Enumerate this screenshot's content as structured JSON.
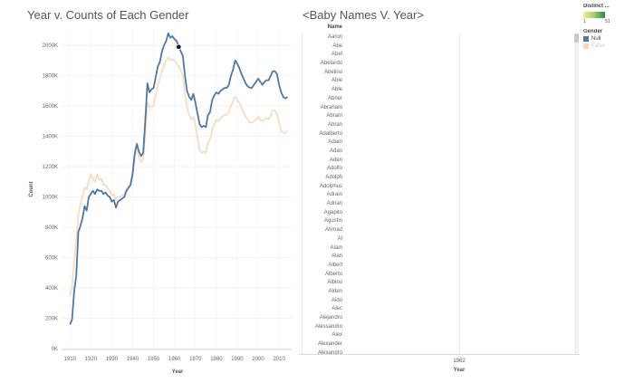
{
  "left_title": "Year v. Counts of Each Gender",
  "right_title": "<Baby Names V. Year>",
  "chart_data": {
    "type": "line",
    "title": "Year v. Counts of Each Gender",
    "xlabel": "Year",
    "ylabel": "Count",
    "xlim": [
      1906,
      2016
    ],
    "ylim": [
      0,
      2120000
    ],
    "x_ticks": [
      1910,
      1920,
      1930,
      1940,
      1950,
      1960,
      1970,
      1980,
      1990,
      2000,
      2010
    ],
    "y_ticks": [
      0,
      200000,
      400000,
      600000,
      800000,
      1000000,
      1200000,
      1400000,
      1600000,
      1800000,
      2000000
    ],
    "y_tick_labels": [
      "0K",
      "200K",
      "400K",
      "600K",
      "800K",
      "1000K",
      "1200K",
      "1400K",
      "1600K",
      "1800K",
      "2000K"
    ],
    "grid": true,
    "highlight_point": {
      "x": 1962,
      "y": 1990000
    },
    "series": [
      {
        "name": "Null",
        "color": "#4e79a7",
        "x": [
          1910,
          1911,
          1912,
          1913,
          1914,
          1915,
          1916,
          1917,
          1918,
          1919,
          1920,
          1921,
          1922,
          1923,
          1924,
          1925,
          1926,
          1927,
          1928,
          1929,
          1930,
          1931,
          1932,
          1933,
          1934,
          1935,
          1936,
          1937,
          1938,
          1939,
          1940,
          1941,
          1942,
          1943,
          1944,
          1945,
          1946,
          1947,
          1948,
          1949,
          1950,
          1951,
          1952,
          1953,
          1954,
          1955,
          1956,
          1957,
          1958,
          1959,
          1960,
          1961,
          1962,
          1963,
          1964,
          1965,
          1966,
          1967,
          1968,
          1969,
          1970,
          1971,
          1972,
          1973,
          1974,
          1975,
          1976,
          1977,
          1978,
          1979,
          1980,
          1981,
          1982,
          1983,
          1984,
          1985,
          1986,
          1987,
          1988,
          1989,
          1990,
          1991,
          1992,
          1993,
          1994,
          1995,
          1996,
          1997,
          1998,
          1999,
          2000,
          2001,
          2002,
          2003,
          2004,
          2005,
          2006,
          2007,
          2008,
          2009,
          2010,
          2011,
          2012,
          2013,
          2014
        ],
        "values": [
          160000,
          190000,
          380000,
          480000,
          770000,
          810000,
          860000,
          940000,
          910000,
          1000000,
          1020000,
          1040000,
          1020000,
          1050000,
          1040000,
          1040000,
          1020000,
          1030000,
          1010000,
          1000000,
          970000,
          980000,
          930000,
          970000,
          980000,
          990000,
          1000000,
          1040000,
          1060000,
          1080000,
          1160000,
          1290000,
          1350000,
          1300000,
          1270000,
          1290000,
          1500000,
          1750000,
          1690000,
          1710000,
          1720000,
          1790000,
          1860000,
          1890000,
          1960000,
          2000000,
          2030000,
          2080000,
          2050000,
          2060000,
          2040000,
          2030000,
          1990000,
          1960000,
          1930000,
          1800000,
          1700000,
          1660000,
          1640000,
          1680000,
          1620000,
          1550000,
          1480000,
          1460000,
          1470000,
          1460000,
          1540000,
          1560000,
          1640000,
          1670000,
          1690000,
          1680000,
          1700000,
          1710000,
          1720000,
          1720000,
          1740000,
          1800000,
          1840000,
          1900000,
          1880000,
          1850000,
          1810000,
          1780000,
          1750000,
          1730000,
          1720000,
          1720000,
          1740000,
          1760000,
          1780000,
          1760000,
          1740000,
          1760000,
          1770000,
          1770000,
          1800000,
          1830000,
          1830000,
          1810000,
          1740000,
          1690000,
          1660000,
          1650000,
          1660000
        ]
      },
      {
        "name": "False",
        "color": "#f8d9bd",
        "x": [
          1910,
          1911,
          1912,
          1913,
          1914,
          1915,
          1916,
          1917,
          1918,
          1919,
          1920,
          1921,
          1922,
          1923,
          1924,
          1925,
          1926,
          1927,
          1928,
          1929,
          1930,
          1931,
          1932,
          1933,
          1934,
          1935,
          1936,
          1937,
          1938,
          1939,
          1940,
          1941,
          1942,
          1943,
          1944,
          1945,
          1946,
          1947,
          1948,
          1949,
          1950,
          1951,
          1952,
          1953,
          1954,
          1955,
          1956,
          1957,
          1958,
          1959,
          1960,
          1961,
          1962,
          1963,
          1964,
          1965,
          1966,
          1967,
          1968,
          1969,
          1970,
          1971,
          1972,
          1973,
          1974,
          1975,
          1976,
          1977,
          1978,
          1979,
          1980,
          1981,
          1982,
          1983,
          1984,
          1985,
          1986,
          1987,
          1988,
          1989,
          1990,
          1991,
          1992,
          1993,
          1994,
          1995,
          1996,
          1997,
          1998,
          1999,
          2000,
          2001,
          2002,
          2003,
          2004,
          2005,
          2006,
          2007,
          2008,
          2009,
          2010,
          2011,
          2012,
          2013,
          2014
        ],
        "values": [
          350000,
          400000,
          580000,
          720000,
          880000,
          960000,
          1000000,
          1060000,
          1050000,
          1110000,
          1150000,
          1120000,
          1100000,
          1150000,
          1110000,
          1120000,
          1080000,
          1080000,
          1060000,
          1040000,
          1010000,
          1020000,
          980000,
          1000000,
          1000000,
          1010000,
          1020000,
          1050000,
          1070000,
          1090000,
          1130000,
          1250000,
          1330000,
          1260000,
          1230000,
          1250000,
          1400000,
          1620000,
          1590000,
          1600000,
          1600000,
          1670000,
          1740000,
          1780000,
          1830000,
          1870000,
          1900000,
          1920000,
          1900000,
          1910000,
          1900000,
          1880000,
          1860000,
          1830000,
          1800000,
          1680000,
          1590000,
          1540000,
          1510000,
          1530000,
          1470000,
          1390000,
          1310000,
          1290000,
          1300000,
          1290000,
          1360000,
          1380000,
          1440000,
          1480000,
          1510000,
          1500000,
          1520000,
          1530000,
          1540000,
          1540000,
          1560000,
          1600000,
          1630000,
          1660000,
          1640000,
          1620000,
          1590000,
          1560000,
          1530000,
          1510000,
          1490000,
          1490000,
          1500000,
          1510000,
          1530000,
          1510000,
          1500000,
          1510000,
          1520000,
          1510000,
          1540000,
          1570000,
          1570000,
          1550000,
          1490000,
          1440000,
          1420000,
          1420000,
          1440000
        ]
      }
    ]
  },
  "names_panel": {
    "header": "Name",
    "names": [
      "Aaron",
      "Abe",
      "Abel",
      "Abelardo",
      "Abelino",
      "Abie",
      "Able",
      "Abner",
      "Abraham",
      "Abram",
      "Abran",
      "Adalberto",
      "Adam",
      "Adan",
      "Aden",
      "Adolfo",
      "Adolph",
      "Adolphus",
      "Adrain",
      "Adrian",
      "Agapito",
      "Agustin",
      "Ahmad",
      "Al",
      "Alain",
      "Alan",
      "Albert",
      "Alberto",
      "Albino",
      "Alden",
      "Aldo",
      "Alec",
      "Alejandro",
      "Alessandro",
      "Alex",
      "Alexander",
      "Alexandro"
    ],
    "x_tick_label": "1962",
    "x_axis_title": "Year"
  },
  "legend": {
    "color_heading": "Distinct ...",
    "ramp_min": "1",
    "ramp_max": "51",
    "ramp_colors": [
      "#f2ef9f",
      "#2e8b3a"
    ],
    "gender_heading": "Gender",
    "items": [
      {
        "label": "Null",
        "color": "#4e79a7"
      },
      {
        "label": "False",
        "color": "#f8d9bd"
      }
    ]
  }
}
